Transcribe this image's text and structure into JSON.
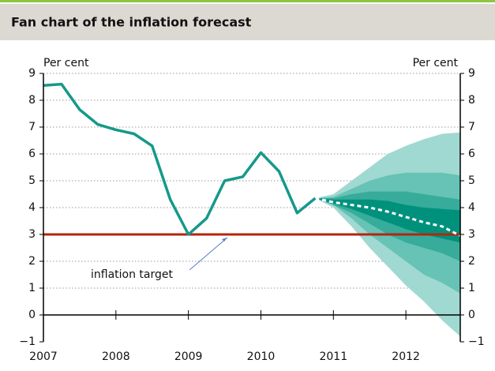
{
  "chart_data": {
    "type": "fan",
    "title": "Fan chart of the inflation forecast",
    "y_label": "Per cent",
    "y2_label": "Per cent",
    "xlim": [
      2007,
      2012.75
    ],
    "xticks": [
      2007,
      2008,
      2009,
      2010,
      2011,
      2012
    ],
    "ylim": [
      -1,
      9
    ],
    "yticks": [
      {
        "value": -1,
        "label": "−1"
      },
      0,
      1,
      2,
      3,
      4,
      5,
      6,
      7,
      8,
      9
    ],
    "y2lim": [
      -1,
      9
    ],
    "y2ticks": [
      {
        "value": -1,
        "label": "−1"
      },
      0,
      1,
      2,
      3,
      4,
      5,
      6,
      7,
      8,
      9
    ],
    "grid": true,
    "outturn": {
      "color": "#15998a",
      "x": [
        2007,
        2007.25,
        2007.5,
        2007.75,
        2008,
        2008.25,
        2008.5,
        2008.75,
        2009,
        2009.25,
        2009.5,
        2009.75,
        2010,
        2010.25,
        2010.5,
        2010.75
      ],
      "values": [
        8.55,
        8.6,
        7.65,
        7.1,
        6.9,
        6.75,
        6.3,
        4.3,
        3.0,
        3.6,
        5.0,
        5.15,
        6.05,
        5.35,
        3.8,
        4.35
      ]
    },
    "forecast_x": [
      2010.75,
      2011,
      2011.25,
      2011.5,
      2011.75,
      2012,
      2012.25,
      2012.5,
      2012.75
    ],
    "bands": [
      {
        "color": "#a0d9d1",
        "upper": [
          4.35,
          4.5,
          5.0,
          5.5,
          6.0,
          6.3,
          6.55,
          6.75,
          6.8
        ],
        "lower": [
          4.35,
          4.0,
          3.3,
          2.5,
          1.8,
          1.1,
          0.5,
          -0.2,
          -0.8
        ]
      },
      {
        "color": "#66c3b6",
        "upper": [
          4.35,
          4.4,
          4.7,
          5.0,
          5.2,
          5.3,
          5.3,
          5.3,
          5.2
        ],
        "lower": [
          4.35,
          4.1,
          3.6,
          3.0,
          2.5,
          2.0,
          1.5,
          1.2,
          0.8
        ]
      },
      {
        "color": "#37ac9b",
        "upper": [
          4.35,
          4.35,
          4.5,
          4.6,
          4.6,
          4.6,
          4.5,
          4.4,
          4.3
        ],
        "lower": [
          4.35,
          4.1,
          3.8,
          3.4,
          3.0,
          2.7,
          2.5,
          2.3,
          2.0
        ]
      },
      {
        "color": "#00917d",
        "upper": [
          4.35,
          4.3,
          4.3,
          4.3,
          4.25,
          4.1,
          4.0,
          3.95,
          3.9
        ],
        "lower": [
          4.35,
          4.15,
          3.95,
          3.7,
          3.45,
          3.2,
          3.0,
          2.85,
          2.7
        ]
      }
    ],
    "median": {
      "color": "#ffffff",
      "values": [
        4.35,
        4.2,
        4.1,
        4.0,
        3.85,
        3.65,
        3.45,
        3.3,
        2.95
      ]
    },
    "target": {
      "value": 3,
      "color": "#b3260f",
      "label": "inflation target"
    }
  }
}
